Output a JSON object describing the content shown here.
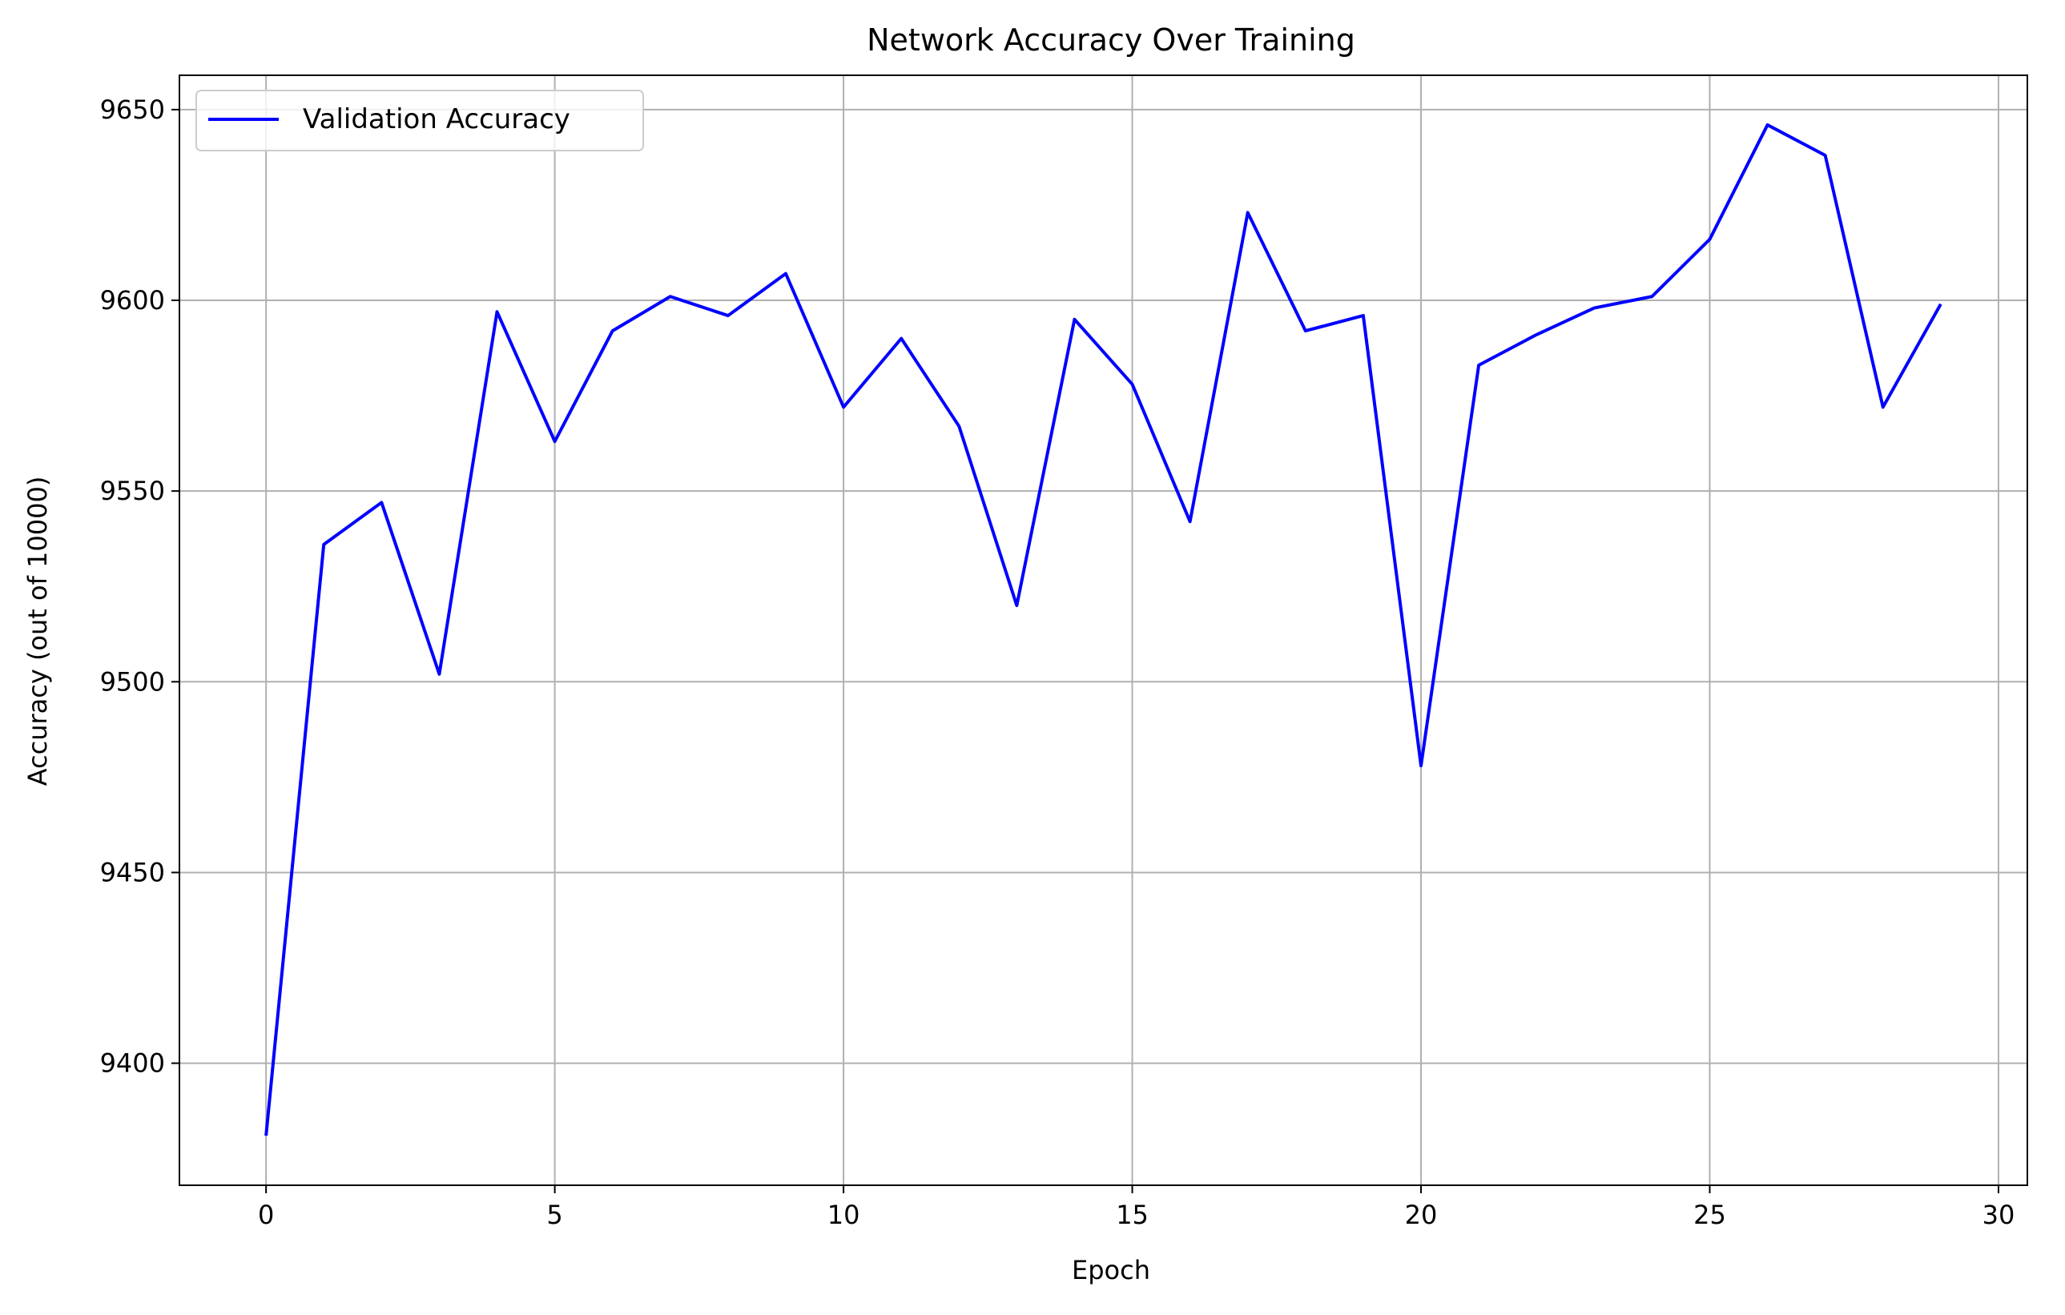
{
  "chart_data": {
    "type": "line",
    "title": "Network Accuracy Over Training",
    "xlabel": "Epoch",
    "ylabel": "Accuracy (out of 10000)",
    "xlim": [
      -1.5,
      30.5
    ],
    "ylim": [
      9368,
      9659
    ],
    "x_ticks": [
      0,
      5,
      10,
      15,
      20,
      25,
      30
    ],
    "y_ticks": [
      9400,
      9450,
      9500,
      9550,
      9600,
      9650
    ],
    "grid": true,
    "legend_position": "top-left",
    "series": [
      {
        "name": "Validation Accuracy",
        "color": "#0000ff",
        "x": [
          0,
          1,
          2,
          3,
          4,
          5,
          6,
          7,
          8,
          9,
          10,
          11,
          12,
          13,
          14,
          15,
          16,
          17,
          18,
          19,
          20,
          21,
          22,
          23,
          24,
          25,
          26,
          27,
          28,
          29
        ],
        "y": [
          9381,
          9536,
          9547,
          9502,
          9597,
          9563,
          9592,
          9601,
          9596,
          9607,
          9572,
          9590,
          9567,
          9520,
          9595,
          9578,
          9542,
          9623,
          9592,
          9596,
          9478,
          9583,
          9591,
          9598,
          9601,
          9616,
          9646,
          9638,
          9572,
          9599
        ]
      }
    ]
  }
}
